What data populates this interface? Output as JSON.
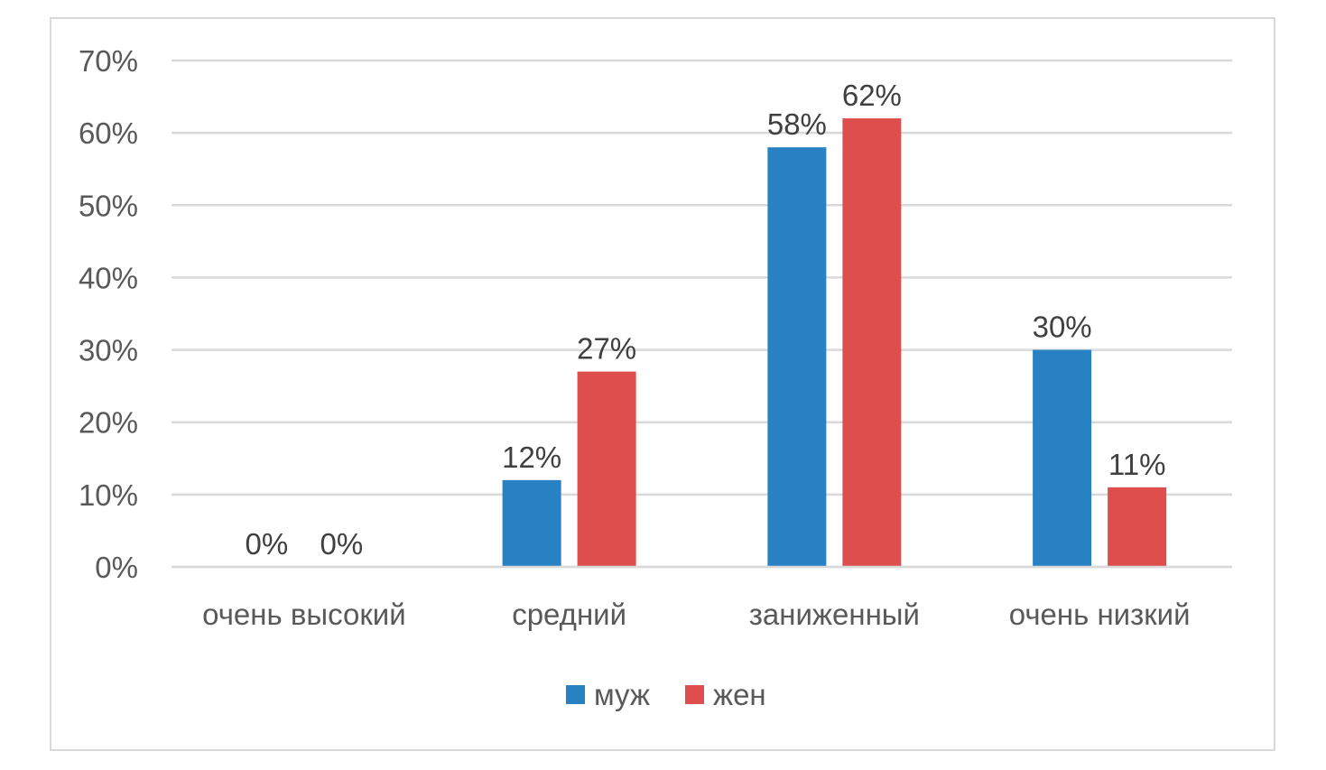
{
  "chart_data": {
    "type": "bar",
    "categories": [
      "очень высокий",
      "средний",
      "заниженный",
      "очень низкий"
    ],
    "series": [
      {
        "name": "муж",
        "values": [
          0,
          12,
          58,
          30
        ],
        "labels": [
          "0%",
          "12%",
          "58%",
          "30%"
        ],
        "color": "#2781c3"
      },
      {
        "name": "жен",
        "values": [
          0,
          27,
          62,
          11
        ],
        "labels": [
          "0%",
          "27%",
          "62%",
          "11%"
        ],
        "color": "#dd4e4c"
      }
    ],
    "yticks": [
      0,
      10,
      20,
      30,
      40,
      50,
      60,
      70
    ],
    "ytick_labels": [
      "0%",
      "10%",
      "20%",
      "30%",
      "40%",
      "50%",
      "60%",
      "70%"
    ],
    "ylim": [
      0,
      70
    ],
    "grid": true,
    "legend": "bottom",
    "title": "",
    "xlabel": "",
    "ylabel": ""
  }
}
